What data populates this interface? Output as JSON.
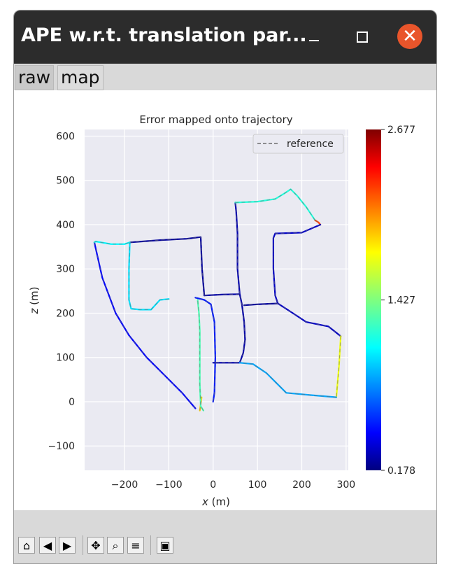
{
  "window": {
    "title": "APE w.r.t. translation par...",
    "minimize_icon": "minimize-icon",
    "maximize_icon": "maximize-icon",
    "close_icon": "close-icon",
    "close_color": "#e9552b"
  },
  "tabs": [
    {
      "label": "raw"
    },
    {
      "label": "map"
    }
  ],
  "toolbar": {
    "icons": [
      "home-icon",
      "back-icon",
      "forward-icon",
      "pan-icon",
      "zoom-icon",
      "configure-subplots-icon",
      "save-icon"
    ]
  },
  "chart_data": {
    "type": "line",
    "title": "Error mapped onto trajectory",
    "xlabel": "x (m)",
    "ylabel": "z (m)",
    "xlim": [
      -290,
      305
    ],
    "ylim": [
      -155,
      615
    ],
    "xticks": [
      "−200",
      "−100",
      "0",
      "100",
      "200",
      "300"
    ],
    "xtick_values": [
      -200,
      -100,
      0,
      100,
      200,
      300
    ],
    "yticks": [
      "−100",
      "0",
      "100",
      "200",
      "300",
      "400",
      "500",
      "600"
    ],
    "ytick_values": [
      -100,
      0,
      100,
      200,
      300,
      400,
      500,
      600
    ],
    "grid": true,
    "legend": {
      "position": "top-right",
      "entries": [
        "reference"
      ]
    },
    "series": [
      {
        "name": "reference",
        "style": "dashed",
        "x": [
          -35,
          -32,
          -30,
          -28,
          -25,
          -28,
          -32,
          -35,
          -38,
          -40,
          -40,
          -40,
          -40,
          -38,
          -36,
          -32,
          -25,
          -12,
          10,
          40,
          65,
          82,
          86,
          90,
          94,
          96,
          96,
          95,
          94,
          90,
          86,
          82,
          83,
          86,
          88,
          90,
          92,
          93,
          96,
          98,
          100,
          102,
          110,
          140,
          155,
          170,
          195,
          215,
          235,
          260,
          275,
          285,
          290
        ],
        "y": [
          -20,
          10,
          40,
          70,
          100,
          130,
          160,
          190,
          210,
          240,
          270,
          300,
          330,
          355,
          370,
          372,
          370,
          370,
          371,
          372,
          371,
          372,
          372,
          362,
          345,
          320,
          300,
          270,
          250,
          240,
          230,
          220,
          200,
          180,
          160,
          140,
          120,
          100,
          90,
          88,
          86,
          86,
          86,
          86,
          86,
          86,
          86,
          86,
          86,
          86,
          86,
          86,
          86
        ]
      }
    ],
    "trajectory_segments": [
      {
        "x": [
          -30,
          -28,
          -26
        ],
        "y": [
          -20,
          -5,
          10
        ],
        "error": 1.85
      },
      {
        "x": [
          -22,
          -28,
          -30,
          -30,
          -30,
          -32,
          -35
        ],
        "y": [
          -20,
          -10,
          40,
          100,
          160,
          200,
          230
        ],
        "error": 1.3
      },
      {
        "x": [
          0,
          3,
          5,
          3,
          -5,
          -20,
          -40
        ],
        "y": [
          0,
          20,
          100,
          180,
          220,
          230,
          235
        ],
        "error": 0.55
      },
      {
        "x": [
          -100,
          -120,
          -140,
          -165,
          -185,
          -190,
          -190,
          -188
        ],
        "y": [
          232,
          230,
          208,
          208,
          210,
          230,
          300,
          360
        ],
        "error": 1.05
      },
      {
        "x": [
          -188,
          -120,
          -60,
          -28,
          -25,
          -20
        ],
        "y": [
          360,
          365,
          368,
          372,
          300,
          240
        ],
        "error": 0.25
      },
      {
        "x": [
          -20,
          20,
          60,
          65,
          70,
          72,
          68,
          60,
          40,
          0
        ],
        "y": [
          240,
          242,
          243,
          220,
          180,
          140,
          110,
          88,
          88,
          88
        ],
        "error": 0.28
      },
      {
        "x": [
          60,
          55,
          55,
          52,
          50
        ],
        "y": [
          243,
          300,
          380,
          430,
          450
        ],
        "error": 0.3
      },
      {
        "x": [
          50,
          100,
          140,
          160,
          175,
          190,
          210,
          230
        ],
        "y": [
          450,
          452,
          458,
          470,
          480,
          465,
          440,
          410
        ],
        "error": 1.2
      },
      {
        "x": [
          230,
          238,
          242
        ],
        "y": [
          410,
          405,
          400
        ],
        "error": 2.2
      },
      {
        "x": [
          242,
          200,
          140,
          136,
          136,
          140,
          146
        ],
        "y": [
          400,
          382,
          380,
          370,
          300,
          240,
          222
        ],
        "error": 0.35
      },
      {
        "x": [
          146,
          100,
          70
        ],
        "y": [
          222,
          220,
          218
        ],
        "error": 0.25
      },
      {
        "x": [
          146,
          180,
          210,
          260,
          288
        ],
        "y": [
          222,
          200,
          180,
          170,
          148
        ],
        "error": 0.35
      },
      {
        "x": [
          288,
          284,
          278
        ],
        "y": [
          148,
          80,
          10
        ],
        "error": 1.7
      },
      {
        "x": [
          278,
          220,
          165,
          150,
          120,
          90,
          60
        ],
        "y": [
          10,
          15,
          20,
          35,
          65,
          85,
          88
        ],
        "error": 0.9
      },
      {
        "x": [
          -268,
          -250,
          -220,
          -190,
          -150,
          -110,
          -70,
          -40
        ],
        "y": [
          360,
          280,
          200,
          150,
          100,
          60,
          20,
          -15
        ],
        "error": 0.5
      },
      {
        "x": [
          -268,
          -265,
          -230,
          -200,
          -188
        ],
        "y": [
          360,
          362,
          356,
          356,
          360
        ],
        "error": 1.1
      }
    ],
    "colorbar": {
      "min": 0.178,
      "max": 2.677,
      "ticks": [
        "0.178",
        "1.427",
        "2.677"
      ],
      "colormap": "jet"
    }
  }
}
